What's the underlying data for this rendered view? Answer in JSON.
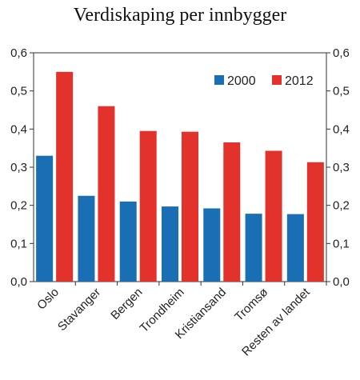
{
  "chart_data": {
    "type": "bar",
    "title": "Verdiskaping per innbygger",
    "categories": [
      "Oslo",
      "Stavanger",
      "Bergen",
      "Trondheim",
      "Kristiansand",
      "Tromsø",
      "Resten av landet"
    ],
    "series": [
      {
        "name": "2000",
        "values": [
          0.33,
          0.225,
          0.21,
          0.197,
          0.192,
          0.178,
          0.177
        ],
        "color": "#1a6fb4"
      },
      {
        "name": "2012",
        "values": [
          0.55,
          0.46,
          0.395,
          0.393,
          0.365,
          0.343,
          0.313
        ],
        "color": "#e3322b"
      }
    ],
    "ylim": [
      0,
      0.6
    ],
    "yticks": [
      "0,0",
      "0,1",
      "0,2",
      "0,3",
      "0,4",
      "0,5",
      "0,6"
    ],
    "ytick_values": [
      0,
      0.1,
      0.2,
      0.3,
      0.4,
      0.5,
      0.6
    ],
    "secondary_y_axis_mirrored": true,
    "grid": false,
    "legend_position": "top-right"
  }
}
